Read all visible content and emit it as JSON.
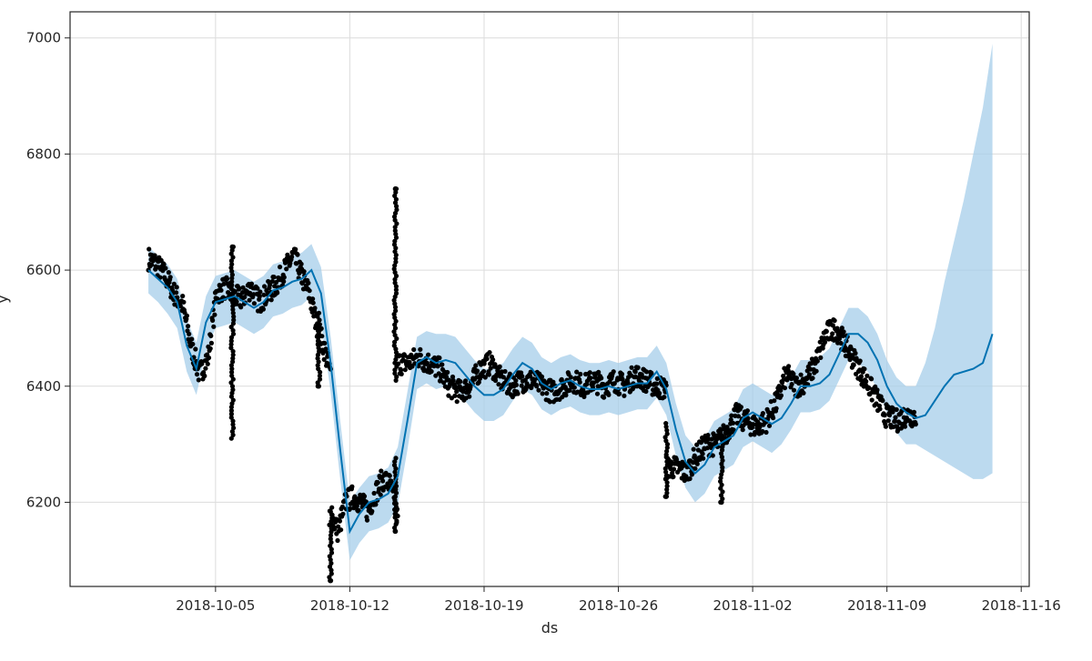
{
  "chart_data": {
    "type": "line",
    "title": "",
    "xlabel": "ds",
    "ylabel": "y",
    "xlim": [
      "2018-09-27T10:00",
      "2018-11-16T10:00"
    ],
    "ylim": [
      6055,
      7045
    ],
    "grid": true,
    "x_ticks": [
      "2018-10-05",
      "2018-10-12",
      "2018-10-19",
      "2018-10-26",
      "2018-11-02",
      "2018-11-09",
      "2018-11-16"
    ],
    "y_ticks": [
      6200,
      6400,
      6600,
      6800,
      7000
    ],
    "colors": {
      "forecast_line": "#0072B2",
      "uncertainty_band": "#a5cde9",
      "observed_points": "#000000",
      "grid": "#dcdcdc"
    },
    "forecast": {
      "x": [
        "2018-10-01T12:00",
        "2018-10-02T00:00",
        "2018-10-02T12:00",
        "2018-10-03T00:00",
        "2018-10-03T12:00",
        "2018-10-04T00:00",
        "2018-10-04T12:00",
        "2018-10-05T00:00",
        "2018-10-05T12:00",
        "2018-10-06T00:00",
        "2018-10-06T12:00",
        "2018-10-07T00:00",
        "2018-10-07T12:00",
        "2018-10-08T00:00",
        "2018-10-08T12:00",
        "2018-10-09T00:00",
        "2018-10-09T12:00",
        "2018-10-10T00:00",
        "2018-10-10T12:00",
        "2018-10-11T00:00",
        "2018-10-11T12:00",
        "2018-10-12T00:00",
        "2018-10-12T12:00",
        "2018-10-13T00:00",
        "2018-10-13T12:00",
        "2018-10-14T00:00",
        "2018-10-14T12:00",
        "2018-10-15T00:00",
        "2018-10-15T12:00",
        "2018-10-16T00:00",
        "2018-10-16T12:00",
        "2018-10-17T00:00",
        "2018-10-17T12:00",
        "2018-10-18T00:00",
        "2018-10-18T12:00",
        "2018-10-19T00:00",
        "2018-10-19T12:00",
        "2018-10-20T00:00",
        "2018-10-20T12:00",
        "2018-10-21T00:00",
        "2018-10-21T12:00",
        "2018-10-22T00:00",
        "2018-10-22T12:00",
        "2018-10-23T00:00",
        "2018-10-23T12:00",
        "2018-10-24T00:00",
        "2018-10-24T12:00",
        "2018-10-25T00:00",
        "2018-10-25T12:00",
        "2018-10-26T00:00",
        "2018-10-26T12:00",
        "2018-10-27T00:00",
        "2018-10-27T12:00",
        "2018-10-28T00:00",
        "2018-10-28T12:00",
        "2018-10-29T00:00",
        "2018-10-29T12:00",
        "2018-10-30T00:00",
        "2018-10-30T12:00",
        "2018-10-31T00:00",
        "2018-10-31T12:00",
        "2018-11-01T00:00",
        "2018-11-01T12:00",
        "2018-11-02T00:00",
        "2018-11-02T12:00",
        "2018-11-03T00:00",
        "2018-11-03T12:00",
        "2018-11-04T00:00",
        "2018-11-04T12:00",
        "2018-11-05T00:00",
        "2018-11-05T12:00",
        "2018-11-06T00:00",
        "2018-11-06T12:00",
        "2018-11-07T00:00",
        "2018-11-07T12:00",
        "2018-11-08T00:00",
        "2018-11-08T12:00",
        "2018-11-09T00:00",
        "2018-11-09T12:00",
        "2018-11-10T00:00",
        "2018-11-10T12:00",
        "2018-11-11T00:00",
        "2018-11-11T12:00",
        "2018-11-12T00:00",
        "2018-11-12T12:00",
        "2018-11-13T00:00",
        "2018-11-13T12:00",
        "2018-11-14T00:00",
        "2018-11-14T12:00"
      ],
      "yhat": [
        6600,
        6585,
        6570,
        6545,
        6470,
        6430,
        6510,
        6545,
        6550,
        6555,
        6545,
        6535,
        6545,
        6565,
        6570,
        6580,
        6585,
        6600,
        6560,
        6440,
        6290,
        6150,
        6180,
        6200,
        6205,
        6215,
        6245,
        6340,
        6440,
        6450,
        6440,
        6445,
        6440,
        6420,
        6400,
        6385,
        6385,
        6395,
        6420,
        6440,
        6430,
        6405,
        6395,
        6405,
        6410,
        6400,
        6395,
        6395,
        6400,
        6395,
        6400,
        6405,
        6405,
        6425,
        6395,
        6325,
        6270,
        6250,
        6265,
        6295,
        6305,
        6315,
        6345,
        6355,
        6345,
        6335,
        6345,
        6370,
        6400,
        6400,
        6405,
        6420,
        6455,
        6490,
        6490,
        6475,
        6445,
        6400,
        6370,
        6355,
        6345,
        6350,
        6375,
        6400,
        6420,
        6425,
        6430,
        6440,
        6490
      ],
      "yhat_lower": [
        6560,
        6545,
        6525,
        6500,
        6425,
        6385,
        6460,
        6500,
        6505,
        6510,
        6500,
        6490,
        6500,
        6520,
        6525,
        6535,
        6540,
        6555,
        6510,
        6390,
        6240,
        6100,
        6130,
        6150,
        6155,
        6165,
        6195,
        6290,
        6395,
        6405,
        6395,
        6400,
        6395,
        6375,
        6355,
        6340,
        6340,
        6350,
        6375,
        6395,
        6385,
        6360,
        6350,
        6360,
        6365,
        6355,
        6350,
        6350,
        6355,
        6350,
        6355,
        6360,
        6360,
        6380,
        6350,
        6280,
        6225,
        6200,
        6215,
        6245,
        6255,
        6265,
        6295,
        6305,
        6295,
        6285,
        6300,
        6325,
        6355,
        6355,
        6360,
        6375,
        6410,
        6445,
        6440,
        6425,
        6395,
        6355,
        6320,
        6300,
        6300,
        6290,
        6280,
        6270,
        6260,
        6250,
        6240,
        6240,
        6250
      ],
      "yhat_upper": [
        6640,
        6625,
        6610,
        6585,
        6515,
        6475,
        6555,
        6590,
        6595,
        6600,
        6590,
        6580,
        6590,
        6610,
        6615,
        6625,
        6630,
        6645,
        6605,
        6485,
        6340,
        6200,
        6225,
        6245,
        6250,
        6260,
        6295,
        6390,
        6485,
        6495,
        6490,
        6490,
        6485,
        6465,
        6445,
        6430,
        6430,
        6440,
        6465,
        6485,
        6475,
        6450,
        6440,
        6450,
        6455,
        6445,
        6440,
        6440,
        6445,
        6440,
        6445,
        6450,
        6450,
        6470,
        6440,
        6370,
        6315,
        6295,
        6310,
        6340,
        6350,
        6360,
        6395,
        6405,
        6395,
        6385,
        6390,
        6415,
        6445,
        6445,
        6450,
        6465,
        6500,
        6535,
        6535,
        6520,
        6490,
        6445,
        6415,
        6400,
        6400,
        6440,
        6500,
        6580,
        6650,
        6720,
        6800,
        6880,
        6990
      ]
    },
    "observed": {
      "name": "observed",
      "segments": [
        {
          "x_start": "2018-10-01T12:00",
          "x_end": "2018-10-09T12:00",
          "y": [
            6620,
            6610,
            6590,
            6560,
            6540,
            6470,
            6420,
            6450,
            6560,
            6570,
            6555,
            6550,
            6570,
            6545,
            6560,
            6575,
            6600,
            6625,
            6590
          ]
        },
        {
          "x_start": "2018-10-09T12:00",
          "x_end": "2018-10-11T00:00",
          "y": [
            6590,
            6560,
            6510,
            6470,
            6420
          ]
        },
        {
          "x_start": "2018-10-11T00:00",
          "x_end": "2018-10-14T12:00",
          "y": [
            6180,
            6150,
            6200,
            6210,
            6200,
            6185,
            6215,
            6240,
            6230,
            6170
          ]
        },
        {
          "x_start": "2018-10-14T12:00",
          "x_end": "2018-10-28T12:00",
          "y": [
            6440,
            6440,
            6450,
            6440,
            6430,
            6400,
            6390,
            6400,
            6430,
            6440,
            6410,
            6400,
            6410,
            6410,
            6400,
            6390,
            6400,
            6410,
            6400,
            6410,
            6400,
            6410,
            6400,
            6420,
            6410,
            6400,
            6395
          ]
        },
        {
          "x_start": "2018-10-28T12:00",
          "x_end": "2018-11-10T12:00",
          "y": [
            6260,
            6260,
            6250,
            6280,
            6300,
            6300,
            6320,
            6350,
            6340,
            6330,
            6340,
            6370,
            6420,
            6400,
            6410,
            6440,
            6490,
            6500,
            6470,
            6440,
            6410,
            6380,
            6350,
            6340,
            6350,
            6350
          ]
        }
      ],
      "extremes": [
        {
          "x": "2018-10-05T21:00",
          "y": 6640
        },
        {
          "x": "2018-10-10T09:00",
          "y": 6400
        },
        {
          "x": "2018-10-11T00:00",
          "y": 6065
        },
        {
          "x": "2018-10-14T09:00",
          "y": 6740
        },
        {
          "x": "2018-10-14T09:00",
          "y": 6150
        },
        {
          "x": "2018-10-28T12:00",
          "y": 6210
        },
        {
          "x": "2018-10-31T09:00",
          "y": 6200
        }
      ]
    }
  }
}
